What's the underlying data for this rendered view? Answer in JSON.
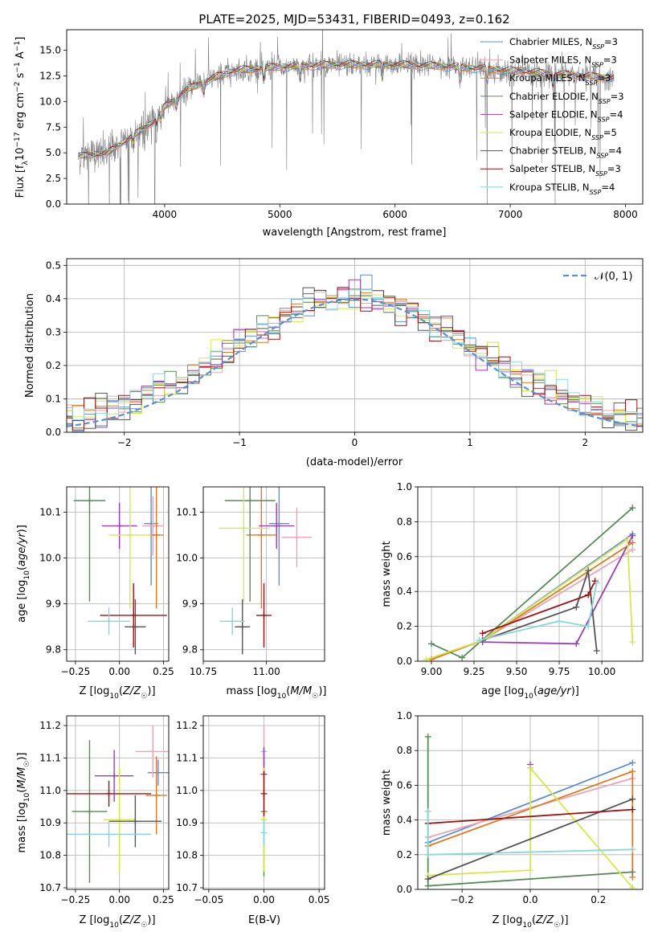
{
  "figure_title": "PLATE=2025, MJD=53431, FIBERID=0493, z=0.162",
  "colors": {
    "Chabrier MILES": "#5b8fd6",
    "Salpeter MILES": "#e8a5b8",
    "Kroupa MILES": "#e07a1f",
    "Chabrier ELODIE": "#5a8a5a",
    "Salpeter ELODIE": "#9a3fb8",
    "Kroupa ELODIE": "#d7e84a",
    "Chabrier STELIB": "#555555",
    "Salpeter STELIB": "#a01010",
    "Kroupa STELIB": "#88d8d8",
    "data": "#808080",
    "gauss": "#5b8fd6",
    "grid": "#b0b0b0"
  },
  "chart_data": [
    {
      "id": "spectrum",
      "type": "line",
      "title": "PLATE=2025, MJD=53431, FIBERID=0493, z=0.162",
      "xlabel": "wavelength [Angstrom, rest frame]",
      "ylabel_parts": [
        "Flux [f",
        "λ",
        "10",
        "−17",
        " erg cm",
        "−2",
        " s",
        "−1",
        " A",
        "−1",
        "]"
      ],
      "xlim": [
        3150,
        8150
      ],
      "ylim": [
        0,
        17
      ],
      "xticks": [
        "4000",
        "5000",
        "6000",
        "7000",
        "8000"
      ],
      "yticks": [
        "0.0",
        "2.5",
        "5.0",
        "7.5",
        "10.0",
        "12.5",
        "15.0"
      ],
      "legend": [
        {
          "label": "Chabrier MILES",
          "n": "3"
        },
        {
          "label": "Salpeter MILES",
          "n": "3"
        },
        {
          "label": "Kroupa MILES",
          "n": "3"
        },
        {
          "label": "Chabrier ELODIE",
          "n": "3"
        },
        {
          "label": "Salpeter ELODIE",
          "n": "4"
        },
        {
          "label": "Kroupa ELODIE",
          "n": "5"
        },
        {
          "label": "Chabrier STELIB",
          "n": "4"
        },
        {
          "label": "Salpeter STELIB",
          "n": "3"
        },
        {
          "label": "Kroupa STELIB",
          "n": "4"
        }
      ],
      "legend_prefix": "N",
      "legend_sub": "SSP",
      "legend_placement": "upper-right",
      "continuum": {
        "x": [
          3250,
          3500,
          3700,
          3900,
          4000,
          4200,
          4400,
          4600,
          5000,
          5500,
          6000,
          6500,
          7000,
          7500,
          7900
        ],
        "y": [
          4.7,
          5.0,
          6.5,
          8.0,
          9.5,
          11.2,
          12.2,
          13.0,
          13.4,
          13.6,
          13.6,
          13.4,
          13.0,
          12.6,
          12.3
        ]
      },
      "grid": false
    },
    {
      "id": "residuals",
      "type": "histogram",
      "xlabel": "(data-model)/error",
      "ylabel": "Normed distribution",
      "xlim": [
        -2.5,
        2.5
      ],
      "ylim": [
        0,
        0.52
      ],
      "xticks": [
        "−2",
        "−1",
        "0",
        "1",
        "2"
      ],
      "yticks": [
        "0.0",
        "0.1",
        "0.2",
        "0.3",
        "0.4",
        "0.5"
      ],
      "legend": "𝒩(0, 1)",
      "legend_placement": "upper-right",
      "grid": true
    },
    {
      "id": "age-vs-Z",
      "type": "errorbar",
      "xlabel": "Z [log10(Z/Z☉)]",
      "ylabel": "age [log10(age/yr)]",
      "xlim": [
        -0.3,
        0.28
      ],
      "ylim": [
        9.775,
        10.155
      ],
      "xticks": [
        "−0.25",
        "0.00",
        "0.25"
      ],
      "yticks": [
        "9.8",
        "9.9",
        "10.0",
        "10.1"
      ],
      "points": [
        {
          "model": "Chabrier MILES",
          "x": 0.18,
          "xerr": 0.04,
          "y": 10.075,
          "yerr": 0.135
        },
        {
          "model": "Salpeter MILES",
          "x": 0.19,
          "xerr": 0.06,
          "y": 10.07,
          "yerr": 0.065
        },
        {
          "model": "Kroupa MILES",
          "x": 0.21,
          "xerr": 0.04,
          "y": 10.05,
          "yerr": 0.16
        },
        {
          "model": "Chabrier ELODIE",
          "x": -0.17,
          "xerr": 0.09,
          "y": 10.125,
          "yerr": 0.22
        },
        {
          "model": "Salpeter ELODIE",
          "x": 0.0,
          "xerr": 0.1,
          "y": 10.07,
          "yerr": 0.05
        },
        {
          "model": "Kroupa ELODIE",
          "x": 0.06,
          "xerr": 0.12,
          "y": 10.05,
          "yerr": 0.16
        },
        {
          "model": "Chabrier STELIB",
          "x": 0.09,
          "xerr": 0.06,
          "y": 9.85,
          "yerr": 0.06
        },
        {
          "model": "Salpeter STELIB",
          "x": 0.08,
          "xerr": 0.19,
          "y": 9.875,
          "yerr": 0.07
        },
        {
          "model": "Kroupa STELIB",
          "x": -0.06,
          "xerr": 0.12,
          "y": 9.862,
          "yerr": 0.03
        }
      ],
      "grid": true
    },
    {
      "id": "age-vs-mass",
      "type": "errorbar",
      "xlabel": "mass [log10(M/M☉)]",
      "ylabel": "",
      "xlim": [
        10.75,
        11.23
      ],
      "ylim": [
        9.775,
        10.155
      ],
      "xticks": [
        "10.75",
        "11.00"
      ],
      "yticks": [
        "9.8",
        "9.9",
        "10.0",
        "10.1"
      ],
      "points": [
        {
          "model": "Chabrier MILES",
          "x": 11.05,
          "xerr": 0.04,
          "y": 10.075,
          "yerr": 0.135
        },
        {
          "model": "Salpeter MILES",
          "x": 11.12,
          "xerr": 0.06,
          "y": 10.045,
          "yerr": 0.065
        },
        {
          "model": "Kroupa MILES",
          "x": 10.98,
          "xerr": 0.06,
          "y": 10.05,
          "yerr": 0.16
        },
        {
          "model": "Chabrier ELODIE",
          "x": 10.935,
          "xerr": 0.1,
          "y": 10.125,
          "yerr": 0.22
        },
        {
          "model": "Salpeter ELODIE",
          "x": 11.04,
          "xerr": 0.07,
          "y": 10.07,
          "yerr": 0.05
        },
        {
          "model": "Kroupa ELODIE",
          "x": 10.91,
          "xerr": 0.1,
          "y": 10.065,
          "yerr": 0.16
        },
        {
          "model": "Chabrier STELIB",
          "x": 10.905,
          "xerr": 0.03,
          "y": 9.85,
          "yerr": 0.06
        },
        {
          "model": "Salpeter STELIB",
          "x": 10.99,
          "xerr": 0.03,
          "y": 9.875,
          "yerr": 0.07
        },
        {
          "model": "Kroupa STELIB",
          "x": 10.865,
          "xerr": 0.05,
          "y": 9.862,
          "yerr": 0.03
        }
      ],
      "grid": true
    },
    {
      "id": "weight-vs-age",
      "type": "line",
      "xlabel": "age [log10(age/yr)]",
      "ylabel": "mass weight",
      "xlim": [
        8.92,
        10.24
      ],
      "ylim": [
        0,
        1
      ],
      "xticks": [
        "9.00",
        "9.25",
        "9.50",
        "9.75",
        "10.00"
      ],
      "yticks": [
        "0.0",
        "0.2",
        "0.4",
        "0.6",
        "0.8",
        "1.0"
      ],
      "series": [
        {
          "model": "Chabrier MILES",
          "x": [
            9.0,
            9.3,
            10.18
          ],
          "y": [
            0.01,
            0.12,
            0.73
          ]
        },
        {
          "model": "Salpeter MILES",
          "x": [
            9.0,
            9.3,
            10.18
          ],
          "y": [
            0.01,
            0.12,
            0.64
          ]
        },
        {
          "model": "Kroupa MILES",
          "x": [
            9.0,
            9.3,
            10.18
          ],
          "y": [
            0.01,
            0.12,
            0.68
          ]
        },
        {
          "model": "Chabrier ELODIE",
          "x": [
            9.0,
            9.18,
            10.18
          ],
          "y": [
            0.1,
            0.02,
            0.88
          ]
        },
        {
          "model": "Salpeter ELODIE",
          "x": [
            9.3,
            9.85,
            10.18
          ],
          "y": [
            0.11,
            0.1,
            0.72
          ]
        },
        {
          "model": "Kroupa ELODIE",
          "x": [
            8.97,
            9.3,
            10.15,
            10.18
          ],
          "y": [
            0.01,
            0.12,
            0.7,
            0.11
          ]
        },
        {
          "model": "Chabrier STELIB",
          "x": [
            9.3,
            9.85,
            9.92,
            9.97
          ],
          "y": [
            0.12,
            0.31,
            0.52,
            0.06
          ]
        },
        {
          "model": "Salpeter STELIB",
          "x": [
            9.3,
            9.92,
            9.96
          ],
          "y": [
            0.16,
            0.38,
            0.46
          ]
        },
        {
          "model": "Kroupa STELIB",
          "x": [
            9.28,
            9.75,
            9.92,
            9.97
          ],
          "y": [
            0.12,
            0.23,
            0.2,
            0.45
          ]
        }
      ],
      "grid": true
    },
    {
      "id": "mass-vs-Z",
      "type": "errorbar",
      "xlabel": "Z [log10(Z/Z☉)]",
      "ylabel": "mass [log10(M/M☉)]",
      "xlim": [
        -0.3,
        0.28
      ],
      "ylim": [
        10.695,
        11.23
      ],
      "xticks": [
        "−0.25",
        "0.00",
        "0.25"
      ],
      "yticks": [
        "10.7",
        "10.8",
        "10.9",
        "11.0",
        "11.1",
        "11.2"
      ],
      "points": [
        {
          "model": "Chabrier MILES",
          "x": 0.22,
          "xerr": 0.06,
          "y": 11.055,
          "yerr": 0.04
        },
        {
          "model": "Salpeter MILES",
          "x": 0.19,
          "xerr": 0.1,
          "y": 11.12,
          "yerr": 0.08
        },
        {
          "model": "Kroupa MILES",
          "x": 0.21,
          "xerr": 0.06,
          "y": 10.985,
          "yerr": 0.12
        },
        {
          "model": "Chabrier ELODIE",
          "x": -0.17,
          "xerr": 0.1,
          "y": 10.935,
          "yerr": 0.22
        },
        {
          "model": "Salpeter ELODIE",
          "x": -0.03,
          "xerr": 0.11,
          "y": 11.045,
          "yerr": 0.08
        },
        {
          "model": "Kroupa ELODIE",
          "x": 0.0,
          "xerr": 0.09,
          "y": 10.91,
          "yerr": 0.16
        },
        {
          "model": "Chabrier STELIB",
          "x": 0.09,
          "xerr": 0.15,
          "y": 10.905,
          "yerr": 0.08
        },
        {
          "model": "Salpeter STELIB",
          "x": -0.06,
          "xerr": 0.24,
          "y": 10.99,
          "yerr": 0.04
        },
        {
          "model": "Kroupa STELIB",
          "x": -0.06,
          "xerr": 0.24,
          "y": 10.865,
          "yerr": 0.04
        }
      ],
      "grid": true
    },
    {
      "id": "mass-vs-ebv",
      "type": "errorbar",
      "xlabel": "E(B-V)",
      "ylabel": "",
      "xlim": [
        -0.055,
        0.055
      ],
      "ylim": [
        10.695,
        11.23
      ],
      "xticks": [
        "−0.05",
        "0.00",
        "0.05"
      ],
      "yticks": [
        "10.7",
        "10.8",
        "10.9",
        "11.0",
        "11.1",
        "11.2"
      ],
      "points": [
        {
          "model": "Salpeter MILES",
          "x": 0.0,
          "xerr": 0.0,
          "y": 11.12,
          "yerr": 0.08
        },
        {
          "model": "Chabrier ELODIE",
          "x": 0.0,
          "xerr": 0.0,
          "y": 10.935,
          "yerr": 0.2
        },
        {
          "model": "Salpeter ELODIE",
          "x": 0.0,
          "xerr": 0.0,
          "y": 11.05,
          "yerr": 0.08
        },
        {
          "model": "Kroupa ELODIE",
          "x": 0.0,
          "xerr": 0.0,
          "y": 10.91,
          "yerr": 0.16
        },
        {
          "model": "Salpeter STELIB",
          "x": 0.0,
          "xerr": 0.0,
          "y": 10.99,
          "yerr": 0.07
        },
        {
          "model": "Kroupa STELIB",
          "x": 0.0,
          "xerr": 0.0,
          "y": 10.87,
          "yerr": 0.04
        }
      ],
      "grid": true
    },
    {
      "id": "weight-vs-Z",
      "type": "line",
      "xlabel": "Z [log10(Z/Z☉)]",
      "ylabel": "mass weight",
      "xlim": [
        -0.33,
        0.33
      ],
      "ylim": [
        0,
        1
      ],
      "xticks": [
        "−0.2",
        "0.0",
        "0.2"
      ],
      "yticks": [
        "0.0",
        "0.2",
        "0.4",
        "0.6",
        "0.8",
        "1.0"
      ],
      "series": [
        {
          "model": "Chabrier MILES",
          "x": [
            -0.3,
            0.3
          ],
          "y": [
            0.27,
            0.73
          ]
        },
        {
          "model": "Salpeter MILES",
          "x": [
            -0.3,
            0.3
          ],
          "y": [
            0.3,
            0.64
          ]
        },
        {
          "model": "Kroupa MILES",
          "x": [
            -0.3,
            0.3,
            0.3
          ],
          "y": [
            0.25,
            0.68,
            0.07
          ]
        },
        {
          "model": "Chabrier ELODIE",
          "x": [
            -0.3,
            -0.3,
            0.3
          ],
          "y": [
            0.88,
            0.02,
            0.1
          ]
        },
        {
          "model": "Salpeter ELODIE",
          "x": [
            0.0,
            0.0
          ],
          "y": [
            0.72,
            0.7
          ]
        },
        {
          "model": "Kroupa ELODIE",
          "x": [
            -0.3,
            0.0,
            0.0,
            0.3
          ],
          "y": [
            0.08,
            0.11,
            0.7,
            0.01
          ]
        },
        {
          "model": "Chabrier STELIB",
          "x": [
            -0.3,
            0.3
          ],
          "y": [
            0.06,
            0.52
          ]
        },
        {
          "model": "Salpeter STELIB",
          "x": [
            -0.3,
            0.3
          ],
          "y": [
            0.38,
            0.46
          ]
        },
        {
          "model": "Kroupa STELIB",
          "x": [
            -0.3,
            -0.3,
            0.3
          ],
          "y": [
            0.45,
            0.2,
            0.23
          ]
        }
      ],
      "grid": true
    }
  ]
}
